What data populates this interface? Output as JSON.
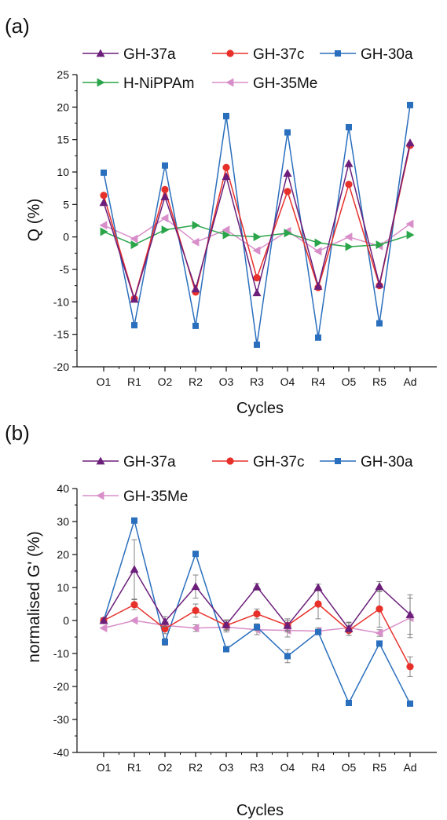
{
  "chart_data": [
    {
      "panel_label": "(a)",
      "type": "line",
      "xlabel": "Cycles",
      "ylabel": "Q (%)",
      "categories": [
        "O1",
        "R1",
        "O2",
        "R2",
        "O3",
        "R3",
        "O4",
        "R4",
        "O5",
        "R5",
        "Ad"
      ],
      "ylim": [
        -20,
        25
      ],
      "yticks": [
        -20,
        -15,
        -10,
        -5,
        0,
        5,
        10,
        15,
        20,
        25
      ],
      "series": [
        {
          "name": "GH-37a",
          "color": "#6b1f7a",
          "marker": "triangle-up",
          "values": [
            5.3,
            -9.6,
            6.2,
            -8.0,
            9.3,
            -8.6,
            9.8,
            -7.6,
            11.3,
            -7.3,
            14.5
          ]
        },
        {
          "name": "GH-37c",
          "color": "#e8302a",
          "marker": "circle",
          "values": [
            6.4,
            -9.5,
            7.3,
            -8.5,
            10.7,
            -6.3,
            7.0,
            -7.8,
            8.1,
            -7.5,
            14.1
          ]
        },
        {
          "name": "GH-30a",
          "color": "#2a6fbd",
          "marker": "square",
          "values": [
            9.9,
            -13.6,
            11.0,
            -13.7,
            18.6,
            -16.6,
            16.1,
            -15.5,
            16.9,
            -13.3,
            20.3
          ]
        },
        {
          "name": "H-NiPPAm",
          "color": "#2aa54a",
          "marker": "triangle-right",
          "values": [
            0.8,
            -1.2,
            1.1,
            1.8,
            0.3,
            0.0,
            0.6,
            -0.9,
            -1.5,
            -1.2,
            0.3
          ]
        },
        {
          "name": "GH-35Me",
          "color": "#d88ec9",
          "marker": "triangle-left",
          "values": [
            1.8,
            -0.3,
            2.9,
            -0.8,
            1.1,
            -2.1,
            0.9,
            -2.2,
            0.0,
            -1.4,
            2.0
          ]
        }
      ]
    },
    {
      "panel_label": "(b)",
      "type": "line",
      "xlabel": "Cycles",
      "ylabel": "normalised G' (%)",
      "categories": [
        "O1",
        "R1",
        "O2",
        "R2",
        "O3",
        "R3",
        "O4",
        "R4",
        "O5",
        "R5",
        "Ad"
      ],
      "ylim": [
        -40,
        40
      ],
      "yticks": [
        -40,
        -30,
        -20,
        -10,
        0,
        10,
        20,
        30,
        40
      ],
      "series": [
        {
          "name": "GH-37a",
          "color": "#6b1f7a",
          "marker": "triangle-up",
          "values": [
            0.0,
            15.5,
            -0.3,
            10.3,
            -1.3,
            10.2,
            -1.5,
            10.0,
            -2.5,
            10.3,
            1.8
          ],
          "errors": [
            0,
            9,
            1.5,
            3.5,
            1.5,
            1.0,
            2.0,
            1.0,
            2.0,
            1.5,
            6.0
          ]
        },
        {
          "name": "GH-37c",
          "color": "#e8302a",
          "marker": "circle",
          "values": [
            0.0,
            4.8,
            -2.5,
            3.0,
            -1.5,
            2.0,
            -1.5,
            5.0,
            -3.0,
            3.5,
            -14.0
          ],
          "errors": [
            0,
            1.5,
            1.5,
            2.0,
            1.5,
            1.5,
            1.5,
            4.5,
            1.5,
            5.5,
            3.0
          ]
        },
        {
          "name": "GH-30a",
          "color": "#2a6fbd",
          "marker": "square",
          "values": [
            0.0,
            30.3,
            -6.5,
            20.2,
            -8.7,
            -2.0,
            -10.8,
            -3.5,
            -25.0,
            -7.0,
            -25.2
          ],
          "errors": [
            0,
            0.8,
            1,
            0.8,
            0.8,
            1.0,
            2.0,
            0.8,
            0.5,
            0.8,
            0.5
          ]
        },
        {
          "name": "GH-35Me",
          "color": "#d88ec9",
          "marker": "triangle-left",
          "values": [
            -2.3,
            0.0,
            -1.5,
            -2.3,
            -2.0,
            -2.8,
            -3.0,
            -3.2,
            -2.2,
            -3.8,
            0.8
          ],
          "errors": [
            0,
            0,
            1,
            1,
            1.5,
            1.5,
            2.0,
            1.0,
            1.5,
            1.0,
            6.0
          ]
        }
      ]
    }
  ]
}
